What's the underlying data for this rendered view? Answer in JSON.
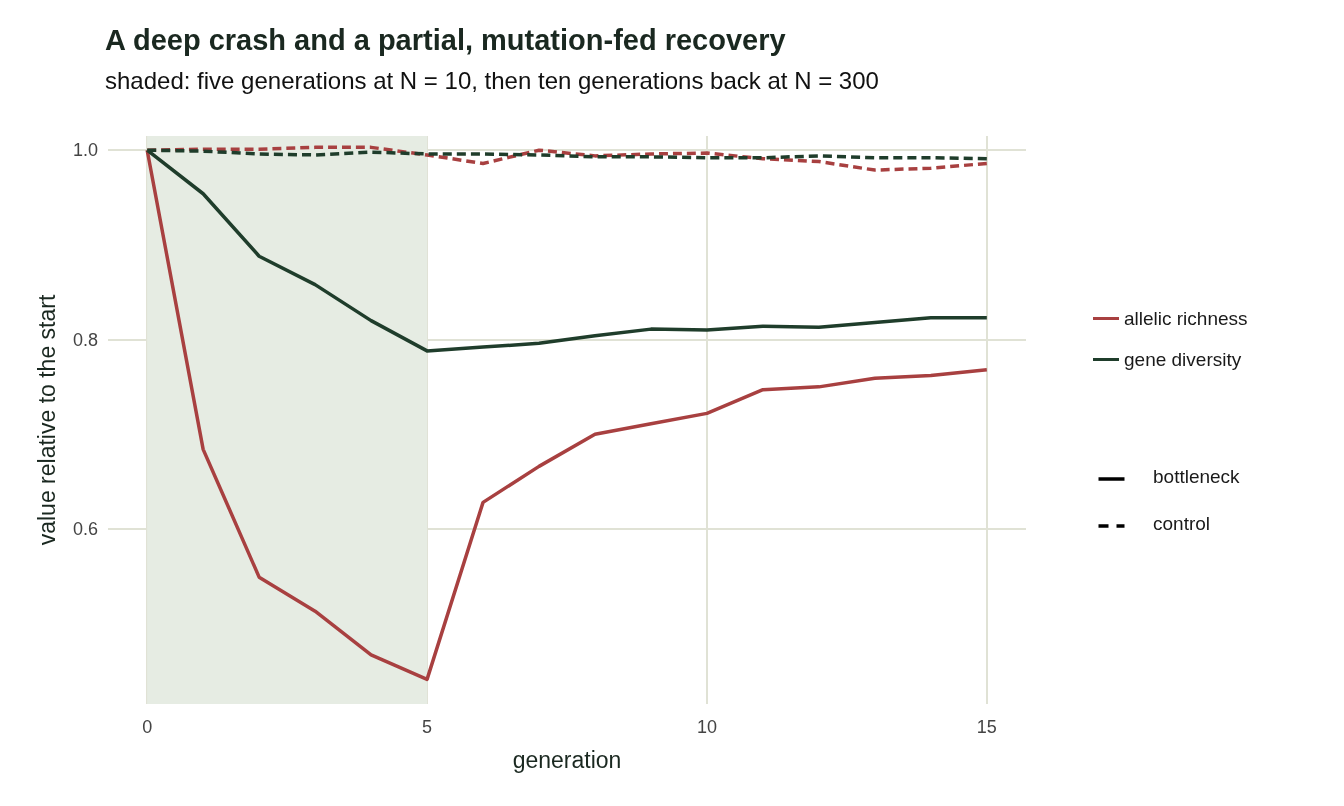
{
  "chart_data": {
    "type": "line",
    "title": "A deep crash and a partial, mutation-fed recovery",
    "subtitle": "shaded: five generations at N = 10, then ten generations back at N = 300",
    "xlabel": "generation",
    "ylabel": "value relative to the start",
    "x": [
      0,
      1,
      2,
      3,
      4,
      5,
      6,
      7,
      8,
      9,
      10,
      11,
      12,
      13,
      14,
      15
    ],
    "series": [
      {
        "name": "allelic richness",
        "color": "#a84040",
        "line_style": "solid",
        "values": [
          1.0,
          0.684,
          0.549,
          0.513,
          0.467,
          0.441,
          0.628,
          0.666,
          0.7,
          0.711,
          0.722,
          0.747,
          0.75,
          0.759,
          0.762,
          0.768
        ]
      },
      {
        "name": "gene diversity",
        "color": "#1f3d2b",
        "line_style": "solid",
        "values": [
          1.0,
          0.954,
          0.888,
          0.858,
          0.82,
          0.788,
          0.792,
          0.796,
          0.804,
          0.811,
          0.81,
          0.814,
          0.813,
          0.818,
          0.823,
          0.823
        ]
      },
      {
        "color": "#a84040",
        "line_style": "dashed",
        "values": [
          1.0,
          1.001,
          1.001,
          1.003,
          1.003,
          0.995,
          0.986,
          1.0,
          0.994,
          0.996,
          0.997,
          0.991,
          0.988,
          0.979,
          0.981,
          0.986
        ]
      },
      {
        "color": "#1f3d2b",
        "line_style": "dashed",
        "values": [
          1.0,
          0.999,
          0.996,
          0.995,
          0.998,
          0.996,
          0.996,
          0.995,
          0.993,
          0.993,
          0.992,
          0.992,
          0.994,
          0.992,
          0.992,
          0.991
        ]
      }
    ],
    "annotations": [
      "bottleneck",
      "control"
    ],
    "bands": [
      {
        "axis": "x",
        "from": 0,
        "to": 5,
        "color": "#e6ece3"
      }
    ],
    "xlim": [
      -0.7,
      15.7
    ],
    "xticks": [
      0,
      5,
      10,
      15
    ],
    "ylim": [
      0.415,
      1.015
    ],
    "yticks": [
      {
        "value": 0.6,
        "label": "0.6"
      },
      {
        "value": 0.8,
        "label": "0.8"
      },
      {
        "value": 1,
        "label": "1.0"
      }
    ],
    "grid": true,
    "legend": "right",
    "marker": "none"
  }
}
